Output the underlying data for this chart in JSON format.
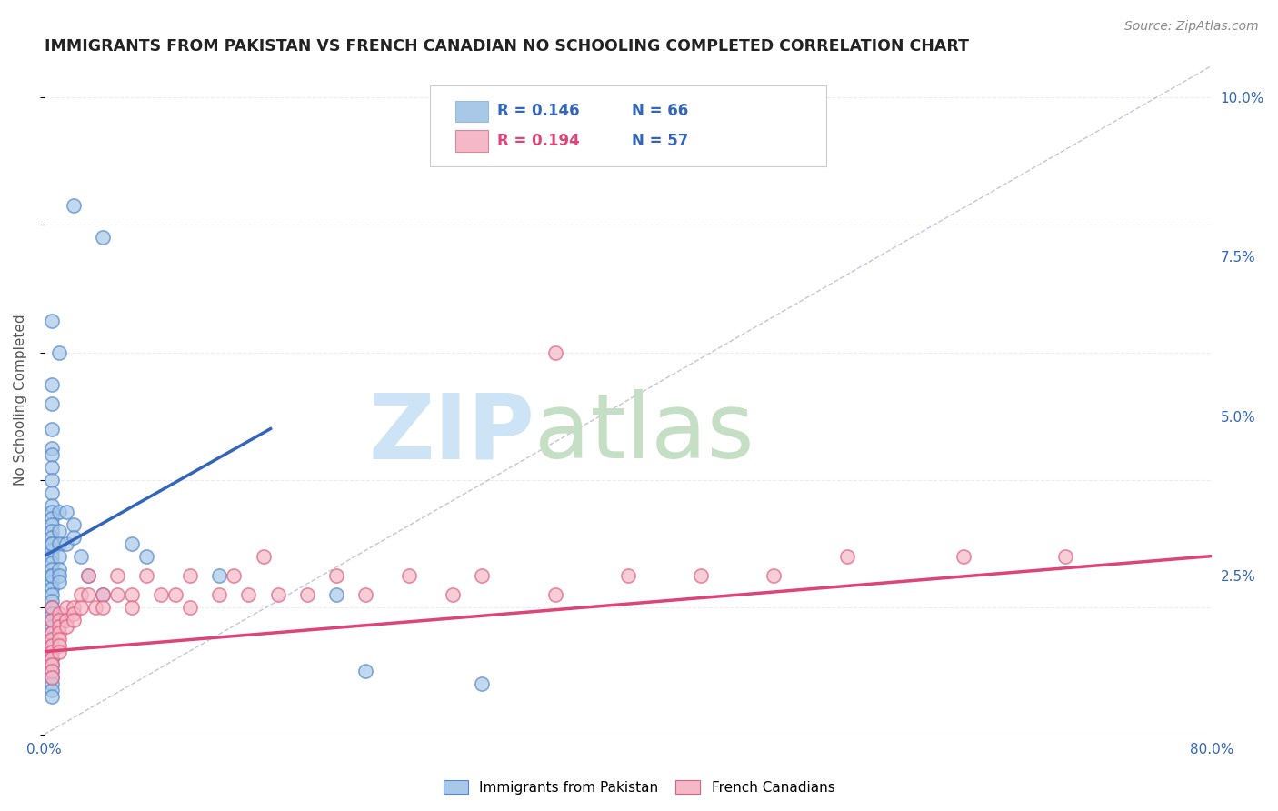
{
  "title": "IMMIGRANTS FROM PAKISTAN VS FRENCH CANADIAN NO SCHOOLING COMPLETED CORRELATION CHART",
  "source_text": "Source: ZipAtlas.com",
  "ylabel": "No Schooling Completed",
  "xlim": [
    0.0,
    0.8
  ],
  "ylim": [
    0.0,
    0.105
  ],
  "xticks": [
    0.0,
    0.1,
    0.2,
    0.3,
    0.4,
    0.5,
    0.6,
    0.7,
    0.8
  ],
  "xticklabels": [
    "0.0%",
    "",
    "",
    "",
    "",
    "",
    "",
    "",
    "80.0%"
  ],
  "yticks_right": [
    0.025,
    0.05,
    0.075,
    0.1
  ],
  "yticklabels_right": [
    "2.5%",
    "5.0%",
    "7.5%",
    "10.0%"
  ],
  "color_blue": "#a8c8e8",
  "color_blue_edge": "#5588cc",
  "color_pink": "#f5b8c8",
  "color_pink_edge": "#e06080",
  "color_blue_line": "#3366bb",
  "color_pink_line": "#dd4477",
  "watermark_zip_color": "#cce0f0",
  "watermark_atlas_color": "#c8e0c8",
  "background_color": "#ffffff",
  "grid_color": "#e8e8e8",
  "blue_scatter_x": [
    0.02,
    0.04,
    0.005,
    0.01,
    0.005,
    0.005,
    0.005,
    0.005,
    0.005,
    0.005,
    0.005,
    0.005,
    0.005,
    0.005,
    0.005,
    0.005,
    0.005,
    0.005,
    0.005,
    0.005,
    0.005,
    0.005,
    0.005,
    0.005,
    0.005,
    0.005,
    0.005,
    0.005,
    0.005,
    0.005,
    0.005,
    0.005,
    0.005,
    0.005,
    0.005,
    0.005,
    0.005,
    0.005,
    0.005,
    0.005,
    0.005,
    0.005,
    0.005,
    0.005,
    0.005,
    0.005,
    0.01,
    0.01,
    0.01,
    0.01,
    0.01,
    0.01,
    0.01,
    0.015,
    0.015,
    0.02,
    0.02,
    0.025,
    0.03,
    0.04,
    0.06,
    0.07,
    0.12,
    0.2,
    0.22,
    0.3
  ],
  "blue_scatter_y": [
    0.083,
    0.078,
    0.065,
    0.06,
    0.055,
    0.052,
    0.048,
    0.045,
    0.044,
    0.042,
    0.04,
    0.038,
    0.036,
    0.035,
    0.034,
    0.033,
    0.032,
    0.031,
    0.03,
    0.029,
    0.028,
    0.027,
    0.026,
    0.025,
    0.024,
    0.023,
    0.022,
    0.021,
    0.02,
    0.019,
    0.019,
    0.018,
    0.017,
    0.016,
    0.015,
    0.014,
    0.013,
    0.012,
    0.011,
    0.01,
    0.009,
    0.008,
    0.007,
    0.006,
    0.03,
    0.025,
    0.035,
    0.032,
    0.03,
    0.028,
    0.026,
    0.025,
    0.024,
    0.035,
    0.03,
    0.033,
    0.031,
    0.028,
    0.025,
    0.022,
    0.03,
    0.028,
    0.025,
    0.022,
    0.01,
    0.008
  ],
  "pink_scatter_x": [
    0.005,
    0.005,
    0.005,
    0.005,
    0.005,
    0.005,
    0.005,
    0.005,
    0.005,
    0.005,
    0.01,
    0.01,
    0.01,
    0.01,
    0.01,
    0.01,
    0.01,
    0.015,
    0.015,
    0.015,
    0.02,
    0.02,
    0.02,
    0.025,
    0.025,
    0.03,
    0.03,
    0.035,
    0.04,
    0.04,
    0.05,
    0.05,
    0.06,
    0.06,
    0.07,
    0.08,
    0.09,
    0.1,
    0.1,
    0.12,
    0.13,
    0.14,
    0.15,
    0.16,
    0.18,
    0.2,
    0.22,
    0.25,
    0.28,
    0.3,
    0.35,
    0.4,
    0.45,
    0.5,
    0.55,
    0.63,
    0.7
  ],
  "pink_scatter_y": [
    0.02,
    0.018,
    0.016,
    0.015,
    0.014,
    0.013,
    0.012,
    0.011,
    0.01,
    0.009,
    0.019,
    0.018,
    0.017,
    0.016,
    0.015,
    0.014,
    0.013,
    0.02,
    0.018,
    0.017,
    0.02,
    0.019,
    0.018,
    0.022,
    0.02,
    0.025,
    0.022,
    0.02,
    0.022,
    0.02,
    0.025,
    0.022,
    0.022,
    0.02,
    0.025,
    0.022,
    0.022,
    0.025,
    0.02,
    0.022,
    0.025,
    0.022,
    0.028,
    0.022,
    0.022,
    0.025,
    0.022,
    0.025,
    0.022,
    0.025,
    0.022,
    0.025,
    0.025,
    0.025,
    0.028,
    0.028,
    0.028
  ],
  "pink_outlier_x": [
    0.35
  ],
  "pink_outlier_y": [
    0.06
  ],
  "blue_line_x": [
    0.0,
    0.155
  ],
  "blue_line_y": [
    0.028,
    0.048
  ],
  "pink_line_x": [
    0.0,
    0.8
  ],
  "pink_line_y": [
    0.013,
    0.028
  ],
  "dashed_line_x": [
    0.0,
    0.8
  ],
  "dashed_line_y": [
    0.0,
    0.105
  ]
}
